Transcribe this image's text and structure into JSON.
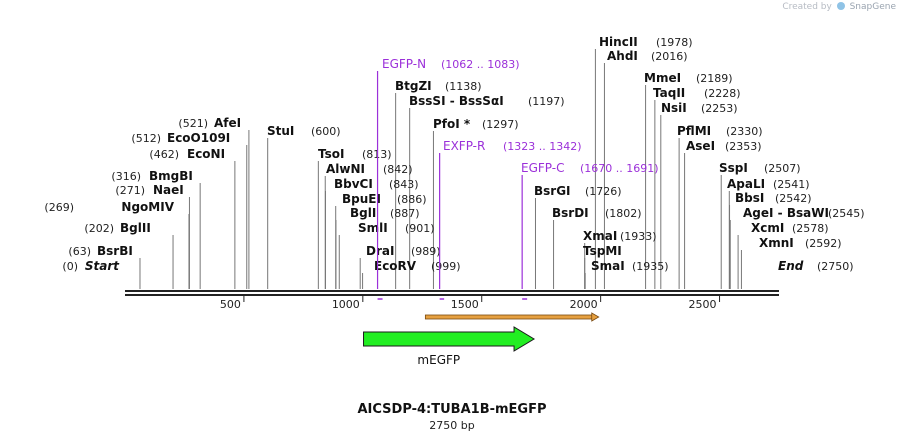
{
  "watermark": {
    "prefix": "Created by",
    "brand": "SnapGene"
  },
  "title": "AICSDP-4:TUBA1B-mEGFP",
  "length_label": "2750 bp",
  "colors": {
    "feature": "#9b30d9",
    "arrow": "#22ee22",
    "orf": "#e6a040"
  },
  "sites": [
    {
      "name": "Start",
      "pos": "(0)",
      "bp": 0,
      "style": "italic"
    },
    {
      "name": "BsrBI",
      "pos": "(63)",
      "bp": 63
    },
    {
      "name": "BglII",
      "pos": "(202)",
      "bp": 202
    },
    {
      "name": "NgoMIV",
      "pos": "(269)",
      "bp": 269
    },
    {
      "name": "NaeI",
      "pos": "(271)",
      "bp": 271
    },
    {
      "name": "BmgBI",
      "pos": "(316)",
      "bp": 316
    },
    {
      "name": "EcoNI",
      "pos": "(462)",
      "bp": 462
    },
    {
      "name": "EcoO109I",
      "pos": "(512)",
      "bp": 512
    },
    {
      "name": "AfeI",
      "pos": "(521)",
      "bp": 521
    },
    {
      "name": "StuI",
      "pos": "(600)",
      "bp": 600
    },
    {
      "name": "TsoI",
      "pos": "(813)",
      "bp": 813
    },
    {
      "name": "AlwNI",
      "pos": "(842)",
      "bp": 842
    },
    {
      "name": "BbvCI",
      "pos": "(843)",
      "bp": 843
    },
    {
      "name": "BpuEI",
      "pos": "(886)",
      "bp": 886
    },
    {
      "name": "BglI",
      "pos": "(887)",
      "bp": 887
    },
    {
      "name": "SmlI",
      "pos": "(901)",
      "bp": 901
    },
    {
      "name": "DraI",
      "pos": "(989)",
      "bp": 989
    },
    {
      "name": "EcoRV",
      "pos": "(999)",
      "bp": 999
    },
    {
      "name": "BtgZI",
      "pos": "(1138)",
      "bp": 1138
    },
    {
      "name": "BssSI - BssSαI",
      "pos": "(1197)",
      "bp": 1197
    },
    {
      "name": "PfoI *",
      "pos": "(1297)",
      "bp": 1297
    },
    {
      "name": "BsrGI",
      "pos": "(1726)",
      "bp": 1726
    },
    {
      "name": "BsrDI",
      "pos": "(1802)",
      "bp": 1802
    },
    {
      "name": "XmaI",
      "pos": "(1933)",
      "bp": 1933
    },
    {
      "name": "TspMI",
      "pos": "",
      "bp": 1933
    },
    {
      "name": "SmaI",
      "pos": "(1935)",
      "bp": 1935
    },
    {
      "name": "HincII",
      "pos": "(1978)",
      "bp": 1978
    },
    {
      "name": "AhdI",
      "pos": "(2016)",
      "bp": 2016
    },
    {
      "name": "MmeI",
      "pos": "(2189)",
      "bp": 2189
    },
    {
      "name": "TaqII",
      "pos": "(2228)",
      "bp": 2228
    },
    {
      "name": "NsiI",
      "pos": "(2253)",
      "bp": 2253
    },
    {
      "name": "PflMI",
      "pos": "(2330)",
      "bp": 2330
    },
    {
      "name": "AseI",
      "pos": "(2353)",
      "bp": 2353
    },
    {
      "name": "SspI",
      "pos": "(2507)",
      "bp": 2507
    },
    {
      "name": "ApaLI",
      "pos": "(2541)",
      "bp": 2541
    },
    {
      "name": "BbsI",
      "pos": "(2542)",
      "bp": 2542
    },
    {
      "name": "AgeI - BsaWI",
      "pos": "(2545)",
      "bp": 2545
    },
    {
      "name": "XcmI",
      "pos": "(2578)",
      "bp": 2578
    },
    {
      "name": "XmnI",
      "pos": "(2592)",
      "bp": 2592
    },
    {
      "name": "End",
      "pos": "(2750)",
      "bp": 2750,
      "style": "italic"
    }
  ],
  "features": [
    {
      "name": "EGFP-N",
      "range": "(1062 .. 1083)",
      "start": 1062,
      "end": 1083
    },
    {
      "name": "EXFP-R",
      "range": "(1323 .. 1342)",
      "start": 1323,
      "end": 1342
    },
    {
      "name": "EGFP-C",
      "range": "(1670 .. 1691)",
      "start": 1670,
      "end": 1691
    }
  ],
  "ruler": {
    "ticks": [
      "500",
      "1000",
      "1500",
      "2000",
      "2500"
    ],
    "tick_values": [
      500,
      1000,
      1500,
      2000,
      2500
    ],
    "total": 2750
  },
  "orf": {
    "start": 1263,
    "end": 1992
  },
  "gene": {
    "label": "mEGFP",
    "start": 1003,
    "end": 1720
  }
}
